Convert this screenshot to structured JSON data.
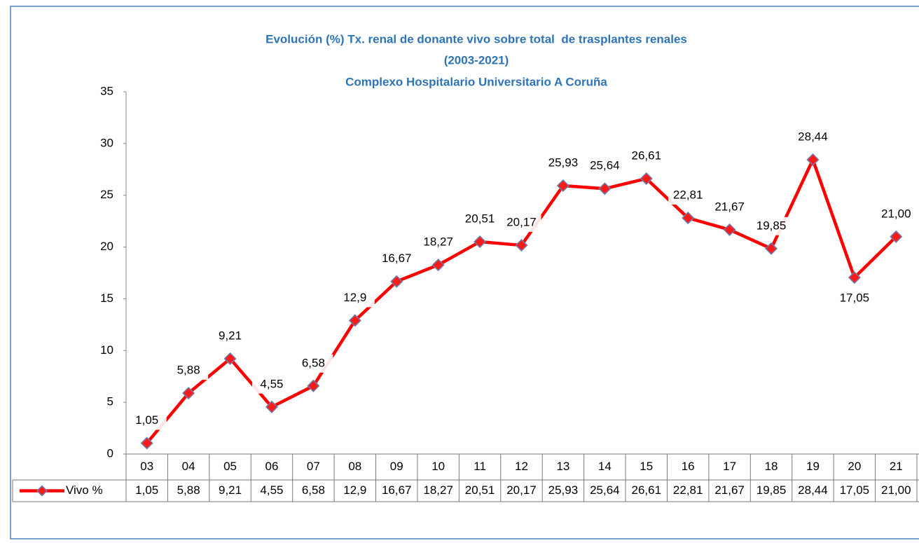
{
  "chart_data": {
    "type": "line",
    "title": [
      "Evolución (%) Tx. renal de donante vivo sobre total  de trasplantes renales",
      "(2003-2021)",
      "Complexo Hospitalario Universitario A Coruña"
    ],
    "categories": [
      "03",
      "04",
      "05",
      "06",
      "07",
      "08",
      "09",
      "10",
      "11",
      "12",
      "13",
      "14",
      "15",
      "16",
      "17",
      "18",
      "19",
      "20",
      "21"
    ],
    "series": [
      {
        "name": "Vivo %",
        "color": "#ff0000",
        "marker_color": "#ff1a1a",
        "values": [
          1.05,
          5.88,
          9.21,
          4.55,
          6.58,
          12.9,
          16.67,
          18.27,
          20.51,
          20.17,
          25.93,
          25.64,
          26.61,
          22.81,
          21.67,
          19.85,
          28.44,
          17.05,
          21
        ],
        "value_labels": [
          "1,05",
          "5,88",
          "9,21",
          "4,55",
          "6,58",
          "12,9",
          "16,67",
          "18,27",
          "20,51",
          "20,17",
          "25,93",
          "25,64",
          "26,61",
          "22,81",
          "21,67",
          "19,85",
          "28,44",
          "17,05",
          "21,00"
        ]
      }
    ],
    "ylim": [
      0,
      35
    ],
    "yticks": [
      0,
      5,
      10,
      15,
      20,
      25,
      30,
      35
    ],
    "grid": false,
    "data_table": true
  }
}
